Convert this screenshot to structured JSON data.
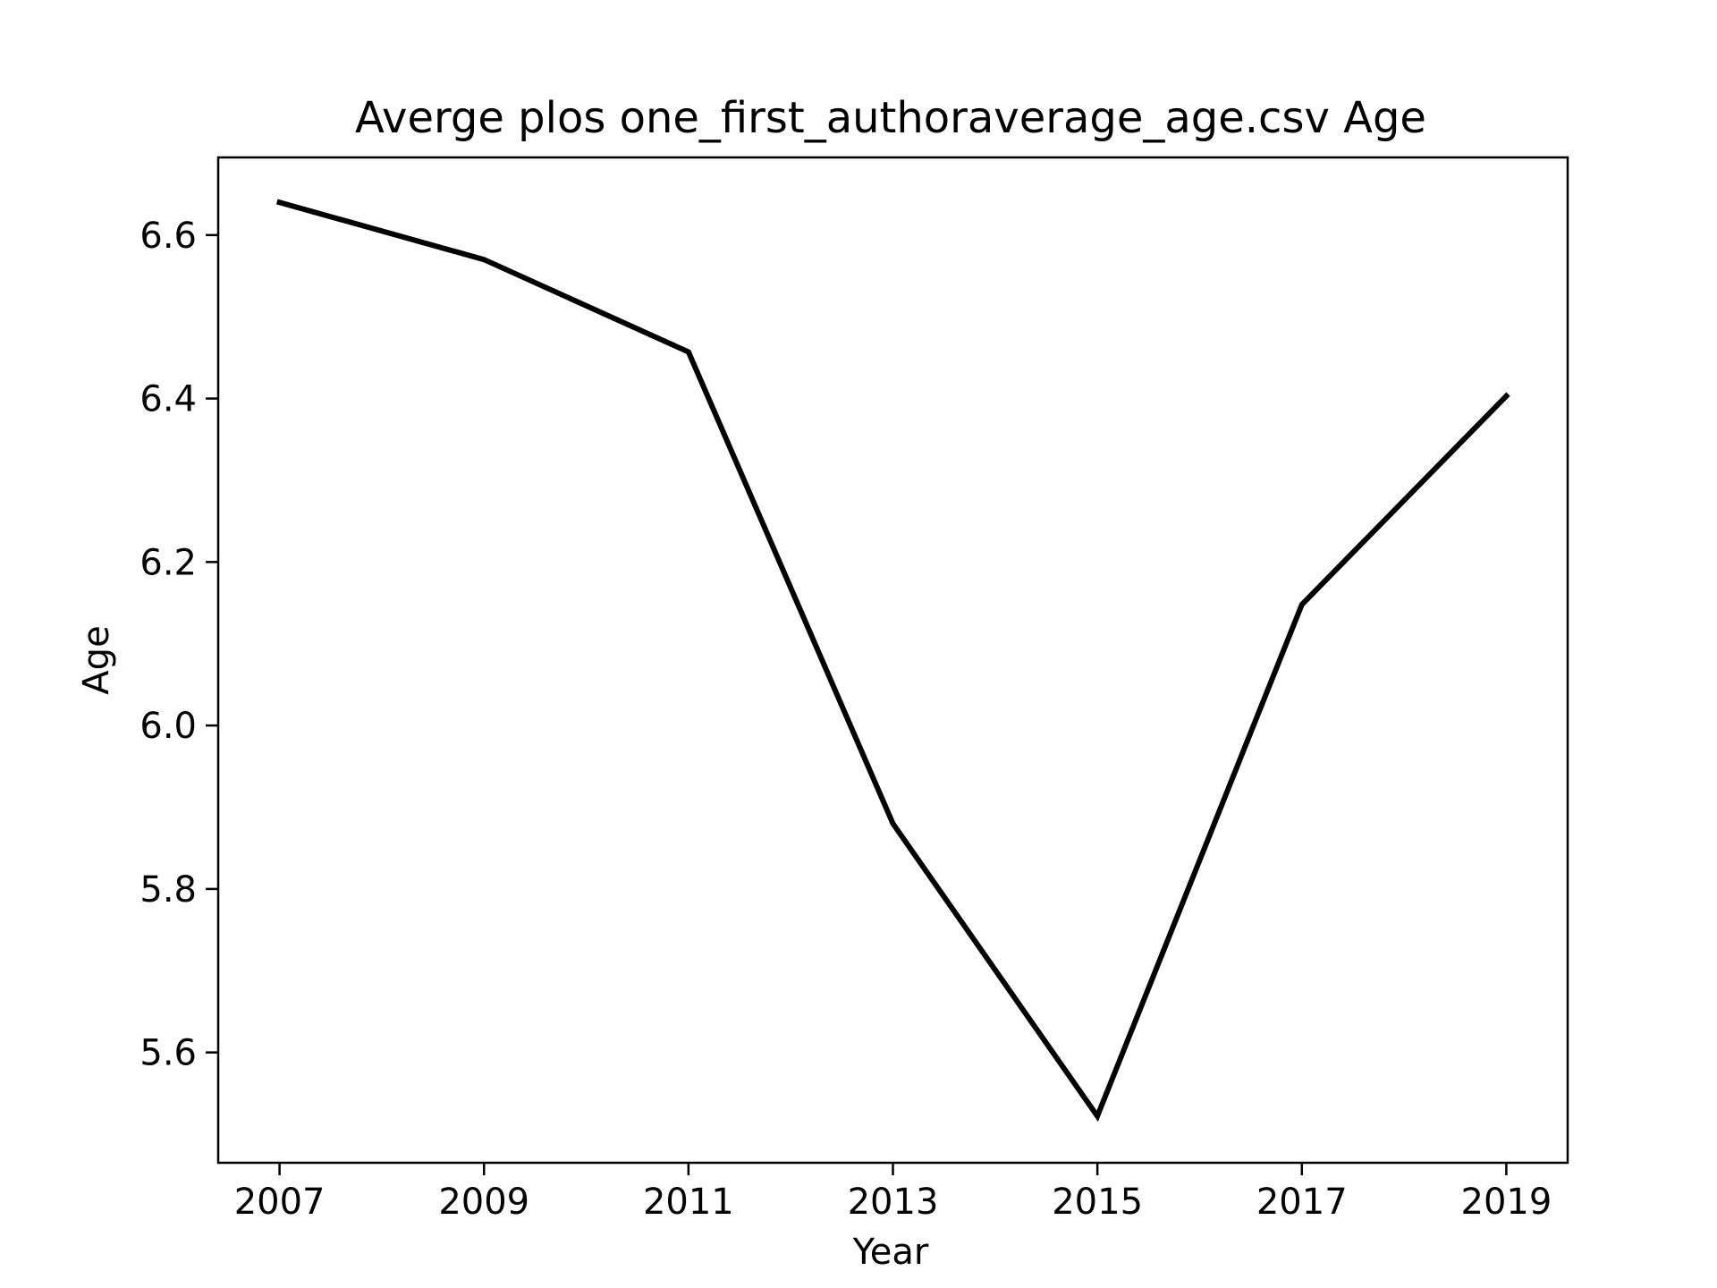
{
  "chart_data": {
    "type": "line",
    "title": "Averge plos one_first_authoraverage_age.csv Age",
    "xlabel": "Year",
    "ylabel": "Age",
    "x": [
      2007,
      2009,
      2011,
      2013,
      2015,
      2017,
      2019
    ],
    "series": [
      {
        "values": [
          6.64,
          6.57,
          6.457,
          5.88,
          5.522,
          6.148,
          6.403
        ]
      }
    ],
    "xticks": [
      "2007",
      "2009",
      "2011",
      "2013",
      "2015",
      "2017",
      "2019"
    ],
    "yticks": [
      "5.6",
      "5.8",
      "6.0",
      "6.2",
      "6.4",
      "6.6"
    ],
    "xlim": [
      2006.4,
      2019.6
    ],
    "ylim": [
      5.465,
      6.695
    ],
    "grid": false,
    "line_color": "#000000"
  }
}
